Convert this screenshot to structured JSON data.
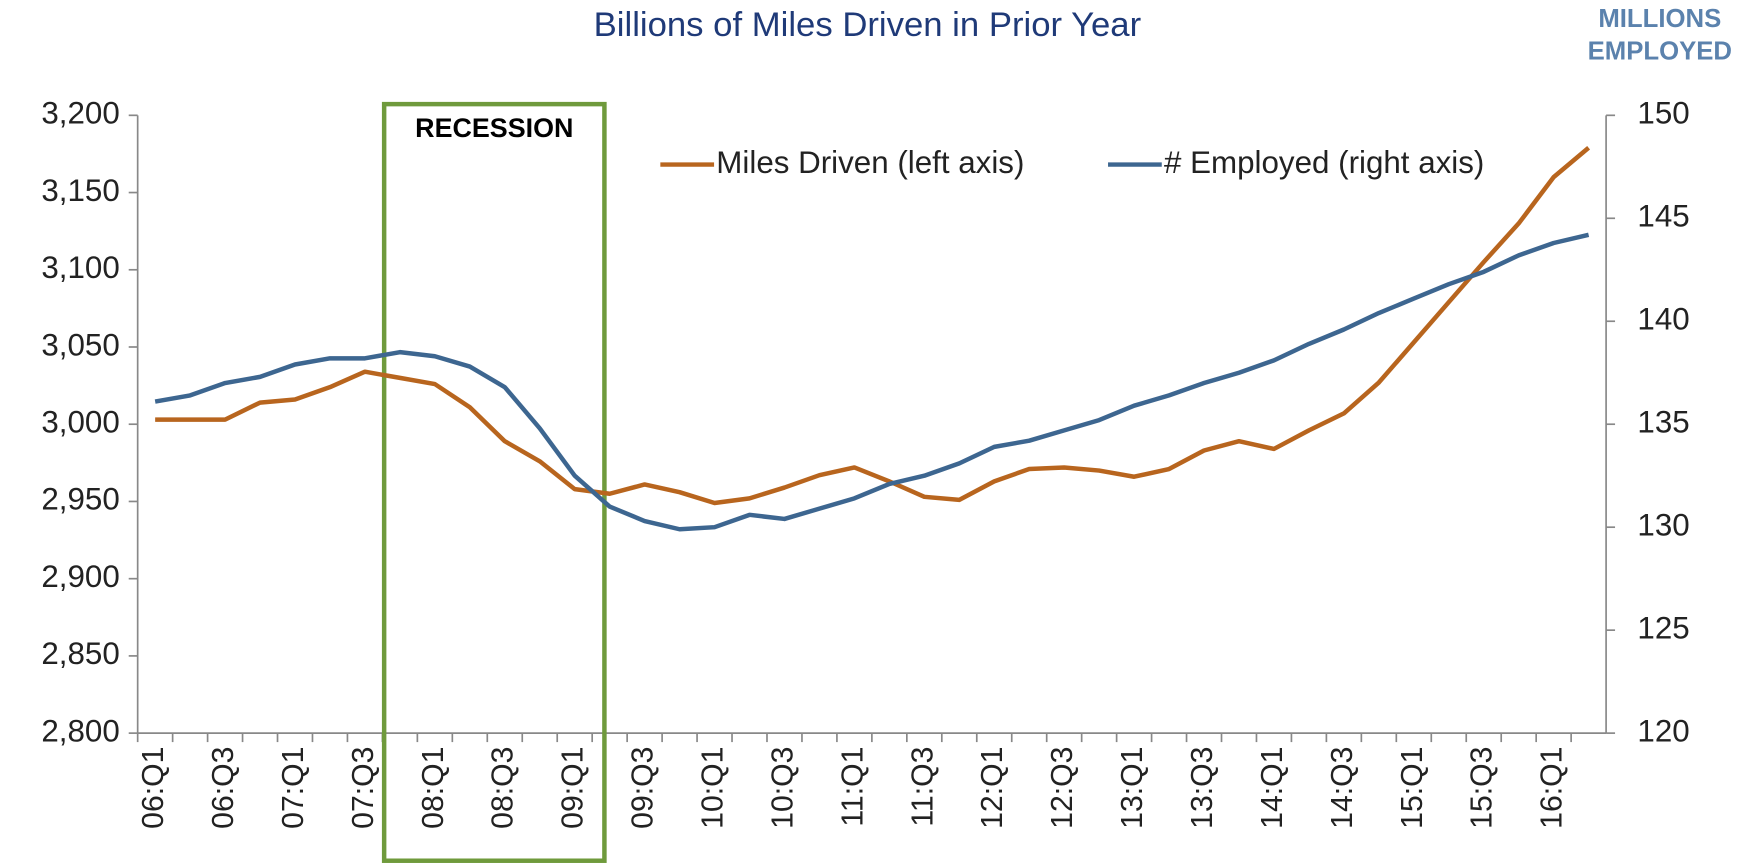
{
  "chart_data": {
    "type": "line",
    "title": "Billions of Miles Driven in Prior Year",
    "y2_label": [
      "MILLIONS",
      "EMPLOYED"
    ],
    "annotation": "RECESSION",
    "categories": [
      "06:Q1",
      null,
      "06:Q3",
      null,
      "07:Q1",
      null,
      "07:Q3",
      null,
      "08:Q1",
      null,
      "08:Q3",
      null,
      "09:Q1",
      null,
      "09:Q3",
      null,
      "10:Q1",
      null,
      "10:Q3",
      null,
      "11:Q1",
      null,
      "11:Q3",
      null,
      "12:Q1",
      null,
      "12:Q3",
      null,
      "13:Q1",
      null,
      "13:Q3",
      null,
      "14:Q1",
      null,
      "14:Q3",
      null,
      "15:Q1",
      null,
      "15:Q3",
      null,
      "16:Q1",
      null
    ],
    "series": [
      {
        "name": "Miles Driven (left axis)",
        "color": "#b8651e",
        "values": [
          3003,
          3003,
          3003,
          3014,
          3016,
          3024,
          3034,
          3030,
          3026,
          3011,
          2989,
          2976,
          2958,
          2955,
          2961,
          2956,
          2949,
          2952,
          2959,
          2967,
          2972,
          2963,
          2953,
          2951,
          2963,
          2971,
          2972,
          2970,
          2966,
          2971,
          2983,
          2989,
          2984,
          2996,
          3007,
          3027,
          3053,
          3079,
          3105,
          3130,
          3160,
          3179
        ]
      },
      {
        "name": "# Employed (right axis)",
        "color": "#3d6690",
        "axis": "y2",
        "values": [
          136.1,
          136.4,
          137.0,
          137.3,
          137.9,
          138.2,
          138.2,
          138.5,
          138.3,
          137.8,
          136.8,
          134.8,
          132.5,
          131.0,
          130.3,
          129.9,
          130.0,
          130.6,
          130.4,
          130.9,
          131.4,
          132.1,
          132.5,
          133.1,
          133.9,
          134.2,
          134.7,
          135.2,
          135.9,
          136.4,
          137.0,
          137.5,
          138.1,
          138.9,
          139.6,
          140.4,
          141.1,
          141.8,
          142.4,
          143.2,
          143.8,
          144.2
        ]
      }
    ],
    "ylim": [
      2800,
      3200
    ],
    "yticks": [
      {
        "value": 2800,
        "label": "2,800"
      },
      {
        "value": 2850,
        "label": "2,850"
      },
      {
        "value": 2900,
        "label": "2,900"
      },
      {
        "value": 2950,
        "label": "2,950"
      },
      {
        "value": 3000,
        "label": "3,000"
      },
      {
        "value": 3050,
        "label": "3,050"
      },
      {
        "value": 3100,
        "label": "3,100"
      },
      {
        "value": 3150,
        "label": "3,150"
      },
      {
        "value": 3200,
        "label": "3,200"
      }
    ],
    "y2lim": [
      120,
      150
    ],
    "y2ticks": [
      120,
      125,
      130,
      135,
      140,
      145,
      150
    ],
    "grid": false,
    "legend": "top"
  }
}
